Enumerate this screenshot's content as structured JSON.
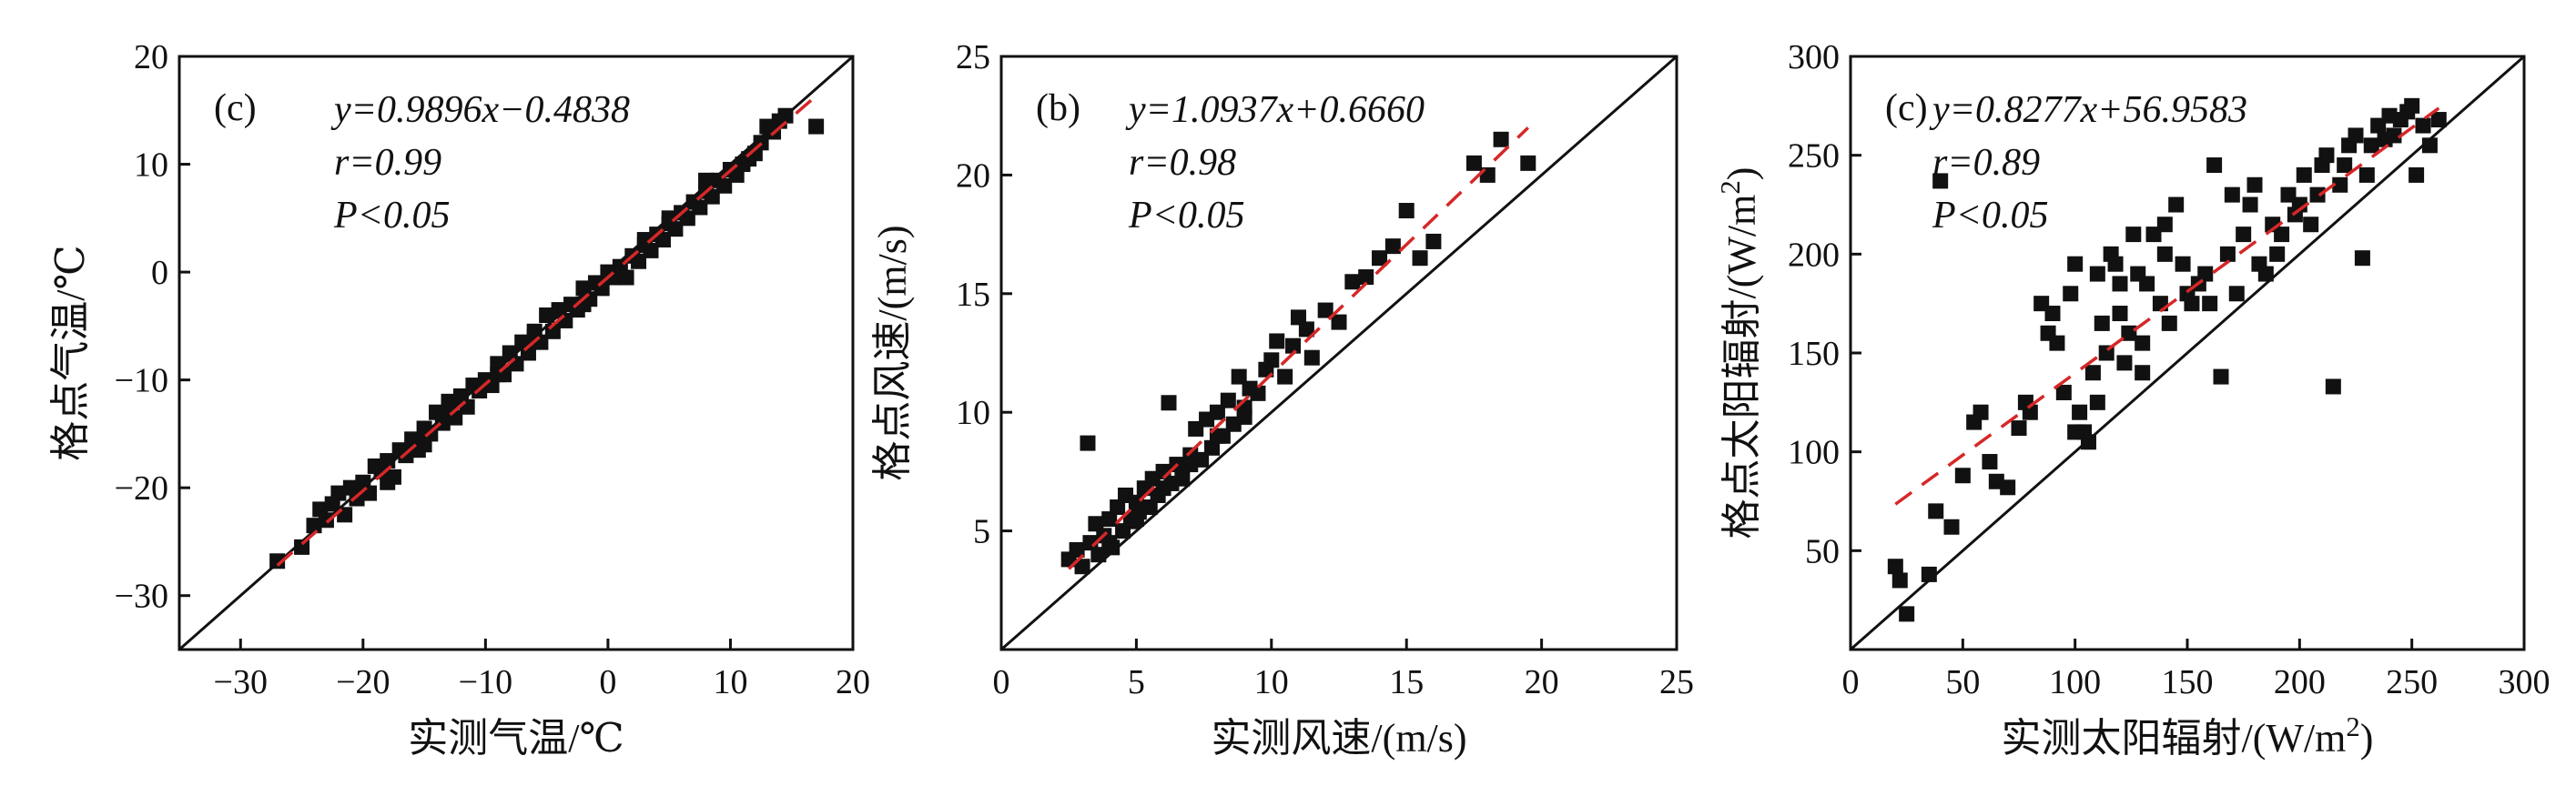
{
  "chart_data": [
    {
      "type": "scatter",
      "panel_label": "(c)",
      "xlabel": "实测气温/℃",
      "ylabel": "格点气温/℃",
      "xlim": [
        -35,
        20
      ],
      "ylim": [
        -35,
        20
      ],
      "xticks": [
        -30,
        -20,
        -10,
        0,
        10,
        20
      ],
      "yticks": [
        -30,
        -20,
        -10,
        0,
        10,
        20
      ],
      "xtick_labels": [
        "−30",
        "−20",
        "−10",
        "0",
        "10",
        "20"
      ],
      "ytick_labels": [
        "−30",
        "−20",
        "−10",
        "0",
        "10",
        "20"
      ],
      "equation": "y=0.9896x−0.4838",
      "r_text": "r=0.99",
      "p_text": "P<0.05",
      "fit": {
        "slope": 0.9896,
        "intercept": -0.4838,
        "x_range": [
          -27,
          17
        ]
      },
      "identity_line": true,
      "points": [
        [
          -27,
          -26.8
        ],
        [
          -25,
          -25.5
        ],
        [
          -24,
          -23.5
        ],
        [
          -23.5,
          -22
        ],
        [
          -23,
          -23
        ],
        [
          -22.5,
          -21.5
        ],
        [
          -22,
          -20.5
        ],
        [
          -21.5,
          -22.5
        ],
        [
          -21,
          -20
        ],
        [
          -20.5,
          -21
        ],
        [
          -20,
          -19.5
        ],
        [
          -19.5,
          -20.5
        ],
        [
          -19,
          -18
        ],
        [
          -18.5,
          -18.5
        ],
        [
          -18,
          -17.5
        ],
        [
          -17.5,
          -19
        ],
        [
          -17,
          -16.5
        ],
        [
          -16.5,
          -17
        ],
        [
          -16,
          -15.5
        ],
        [
          -15.5,
          -16.5
        ],
        [
          -15,
          -14.5
        ],
        [
          -14.5,
          -15
        ],
        [
          -14,
          -13
        ],
        [
          -13.5,
          -14
        ],
        [
          -13,
          -12
        ],
        [
          -12.5,
          -13.5
        ],
        [
          -12,
          -11.5
        ],
        [
          -11.5,
          -12.5
        ],
        [
          -11,
          -10.5
        ],
        [
          -10.5,
          -11
        ],
        [
          -10,
          -10
        ],
        [
          -9.5,
          -10.5
        ],
        [
          -9,
          -8.5
        ],
        [
          -8.5,
          -9.5
        ],
        [
          -8,
          -7.5
        ],
        [
          -7.5,
          -8.5
        ],
        [
          -7,
          -6.5
        ],
        [
          -6.5,
          -7.5
        ],
        [
          -6,
          -5.5
        ],
        [
          -5.5,
          -6.5
        ],
        [
          -5,
          -4
        ],
        [
          -4.5,
          -5.5
        ],
        [
          -4,
          -3.5
        ],
        [
          -3.5,
          -4.5
        ],
        [
          -3,
          -3
        ],
        [
          -2.5,
          -3.5
        ],
        [
          -2,
          -1.5
        ],
        [
          -1.5,
          -2.5
        ],
        [
          -1,
          -1
        ],
        [
          -0.5,
          -1.5
        ],
        [
          0,
          0
        ],
        [
          0.5,
          -0.5
        ],
        [
          1,
          0.5
        ],
        [
          1.5,
          -0.5
        ],
        [
          2,
          1.5
        ],
        [
          2.5,
          1
        ],
        [
          3,
          2.5
        ],
        [
          3.5,
          2
        ],
        [
          4,
          3.5
        ],
        [
          4.5,
          3
        ],
        [
          5,
          4.5
        ],
        [
          5.5,
          4
        ],
        [
          6,
          5.5
        ],
        [
          6.5,
          5
        ],
        [
          7,
          6.5
        ],
        [
          7.5,
          6
        ],
        [
          8,
          7.5
        ],
        [
          8.5,
          7
        ],
        [
          9,
          8.5
        ],
        [
          9.5,
          8
        ],
        [
          10,
          9.5
        ],
        [
          10.5,
          9
        ],
        [
          11,
          10
        ],
        [
          11.5,
          10.5
        ],
        [
          12,
          11
        ],
        [
          12.5,
          12
        ],
        [
          13,
          13.5
        ],
        [
          13.5,
          13
        ],
        [
          14,
          14
        ],
        [
          14.5,
          14.5
        ],
        [
          17,
          13.5
        ],
        [
          -13,
          -13
        ],
        [
          -15,
          -16
        ],
        [
          -18,
          -19.5
        ],
        [
          -9,
          -9.5
        ],
        [
          -6,
          -6
        ],
        [
          5,
          5
        ],
        [
          8,
          8.5
        ],
        [
          -2,
          -3
        ],
        [
          3,
          3
        ]
      ]
    },
    {
      "type": "scatter",
      "panel_label": "(b)",
      "xlabel": "实测风速/(m/s)",
      "ylabel": "格点风速/(m/s)",
      "xlim": [
        0,
        25
      ],
      "ylim": [
        0,
        25
      ],
      "xticks": [
        0,
        5,
        10,
        15,
        20,
        25
      ],
      "yticks": [
        5,
        10,
        15,
        20,
        25
      ],
      "xtick_labels": [
        "0",
        "5",
        "10",
        "15",
        "20",
        "25"
      ],
      "ytick_labels": [
        "5",
        "10",
        "15",
        "20",
        "25"
      ],
      "equation": "y=1.0937x+0.6660",
      "r_text": "r=0.98",
      "p_text": "P<0.05",
      "fit": {
        "slope": 1.0937,
        "intercept": 0.666,
        "x_range": [
          2.5,
          19.5
        ]
      },
      "identity_line": true,
      "points": [
        [
          2.5,
          3.8
        ],
        [
          2.8,
          4.2
        ],
        [
          3,
          3.5
        ],
        [
          3.2,
          8.7
        ],
        [
          3.3,
          4.5
        ],
        [
          3.5,
          5.3
        ],
        [
          3.6,
          4
        ],
        [
          3.8,
          4.8
        ],
        [
          4,
          5.5
        ],
        [
          4.1,
          4.3
        ],
        [
          4.3,
          6
        ],
        [
          4.5,
          5
        ],
        [
          4.6,
          6.5
        ],
        [
          4.8,
          5.4
        ],
        [
          5,
          6.2
        ],
        [
          5.1,
          5.8
        ],
        [
          5.3,
          6.8
        ],
        [
          5.5,
          6
        ],
        [
          5.6,
          7.2
        ],
        [
          5.8,
          6.5
        ],
        [
          6,
          7.5
        ],
        [
          6.2,
          10.4
        ],
        [
          6.3,
          7
        ],
        [
          6.5,
          7.8
        ],
        [
          6.7,
          7.2
        ],
        [
          7,
          8.2
        ],
        [
          7.2,
          9.3
        ],
        [
          7.4,
          8
        ],
        [
          7.6,
          9.7
        ],
        [
          7.8,
          8.5
        ],
        [
          8,
          10
        ],
        [
          8.2,
          9
        ],
        [
          8.4,
          10.5
        ],
        [
          8.6,
          9.5
        ],
        [
          8.8,
          11.5
        ],
        [
          9,
          10.2
        ],
        [
          9.2,
          11
        ],
        [
          9.5,
          10.8
        ],
        [
          9.8,
          11.8
        ],
        [
          10,
          12.2
        ],
        [
          10.2,
          13
        ],
        [
          10.5,
          11.5
        ],
        [
          10.8,
          12.8
        ],
        [
          11,
          14
        ],
        [
          11.3,
          13.5
        ],
        [
          11.5,
          12.3
        ],
        [
          12,
          14.3
        ],
        [
          12.5,
          13.8
        ],
        [
          13,
          15.5
        ],
        [
          13.5,
          15.7
        ],
        [
          14,
          16.5
        ],
        [
          14.5,
          17
        ],
        [
          15,
          18.5
        ],
        [
          15.5,
          16.5
        ],
        [
          16,
          17.2
        ],
        [
          17.5,
          20.5
        ],
        [
          18,
          20
        ],
        [
          18.5,
          21.5
        ],
        [
          19.5,
          20.5
        ],
        [
          6,
          6.8
        ],
        [
          7,
          7.8
        ],
        [
          8,
          9
        ],
        [
          9,
          9.8
        ],
        [
          5,
          5.5
        ],
        [
          4,
          4.5
        ]
      ]
    },
    {
      "type": "scatter",
      "panel_label": "(c)",
      "xlabel": "实测太阳辐射/(W/m²)",
      "ylabel": "格点太阳辐射/(W/m²)",
      "xlim": [
        0,
        300
      ],
      "ylim": [
        0,
        300
      ],
      "xticks": [
        0,
        50,
        100,
        150,
        200,
        250,
        300
      ],
      "yticks": [
        50,
        100,
        150,
        200,
        250,
        300
      ],
      "xtick_labels": [
        "0",
        "50",
        "100",
        "150",
        "200",
        "250",
        "300"
      ],
      "ytick_labels": [
        "50",
        "100",
        "150",
        "200",
        "250",
        "300"
      ],
      "equation": "y=0.8277x+56.9583",
      "r_text": "r=0.89",
      "p_text": "P<0.05",
      "fit": {
        "slope": 0.8277,
        "intercept": 56.9583,
        "x_range": [
          20,
          262
        ]
      },
      "identity_line": true,
      "points": [
        [
          20,
          42
        ],
        [
          22,
          35
        ],
        [
          25,
          18
        ],
        [
          35,
          38
        ],
        [
          38,
          70
        ],
        [
          40,
          237
        ],
        [
          45,
          62
        ],
        [
          50,
          88
        ],
        [
          55,
          115
        ],
        [
          58,
          120
        ],
        [
          62,
          95
        ],
        [
          65,
          85
        ],
        [
          70,
          82
        ],
        [
          75,
          112
        ],
        [
          78,
          125
        ],
        [
          80,
          120
        ],
        [
          85,
          175
        ],
        [
          88,
          160
        ],
        [
          90,
          170
        ],
        [
          92,
          155
        ],
        [
          95,
          130
        ],
        [
          98,
          180
        ],
        [
          100,
          195
        ],
        [
          102,
          120
        ],
        [
          104,
          110
        ],
        [
          106,
          105
        ],
        [
          108,
          140
        ],
        [
          110,
          190
        ],
        [
          112,
          165
        ],
        [
          114,
          150
        ],
        [
          116,
          200
        ],
        [
          118,
          195
        ],
        [
          120,
          170
        ],
        [
          122,
          145
        ],
        [
          124,
          160
        ],
        [
          126,
          210
        ],
        [
          128,
          190
        ],
        [
          130,
          155
        ],
        [
          132,
          185
        ],
        [
          135,
          210
        ],
        [
          138,
          175
        ],
        [
          140,
          200
        ],
        [
          142,
          165
        ],
        [
          145,
          225
        ],
        [
          148,
          195
        ],
        [
          150,
          180
        ],
        [
          152,
          175
        ],
        [
          155,
          185
        ],
        [
          158,
          190
        ],
        [
          160,
          175
        ],
        [
          162,
          245
        ],
        [
          165,
          138
        ],
        [
          168,
          200
        ],
        [
          170,
          230
        ],
        [
          172,
          180
        ],
        [
          175,
          210
        ],
        [
          178,
          225
        ],
        [
          180,
          235
        ],
        [
          182,
          195
        ],
        [
          185,
          190
        ],
        [
          188,
          215
        ],
        [
          190,
          200
        ],
        [
          192,
          210
        ],
        [
          195,
          230
        ],
        [
          198,
          220
        ],
        [
          200,
          225
        ],
        [
          202,
          240
        ],
        [
          205,
          215
        ],
        [
          208,
          230
        ],
        [
          210,
          245
        ],
        [
          212,
          250
        ],
        [
          215,
          133
        ],
        [
          218,
          235
        ],
        [
          220,
          245
        ],
        [
          222,
          255
        ],
        [
          225,
          260
        ],
        [
          228,
          198
        ],
        [
          230,
          240
        ],
        [
          232,
          255
        ],
        [
          235,
          265
        ],
        [
          238,
          258
        ],
        [
          240,
          270
        ],
        [
          242,
          260
        ],
        [
          245,
          268
        ],
        [
          248,
          272
        ],
        [
          250,
          275
        ],
        [
          252,
          240
        ],
        [
          255,
          265
        ],
        [
          258,
          255
        ],
        [
          262,
          268
        ],
        [
          120,
          185
        ],
        [
          130,
          140
        ],
        [
          110,
          125
        ],
        [
          140,
          215
        ],
        [
          100,
          110
        ]
      ]
    }
  ]
}
